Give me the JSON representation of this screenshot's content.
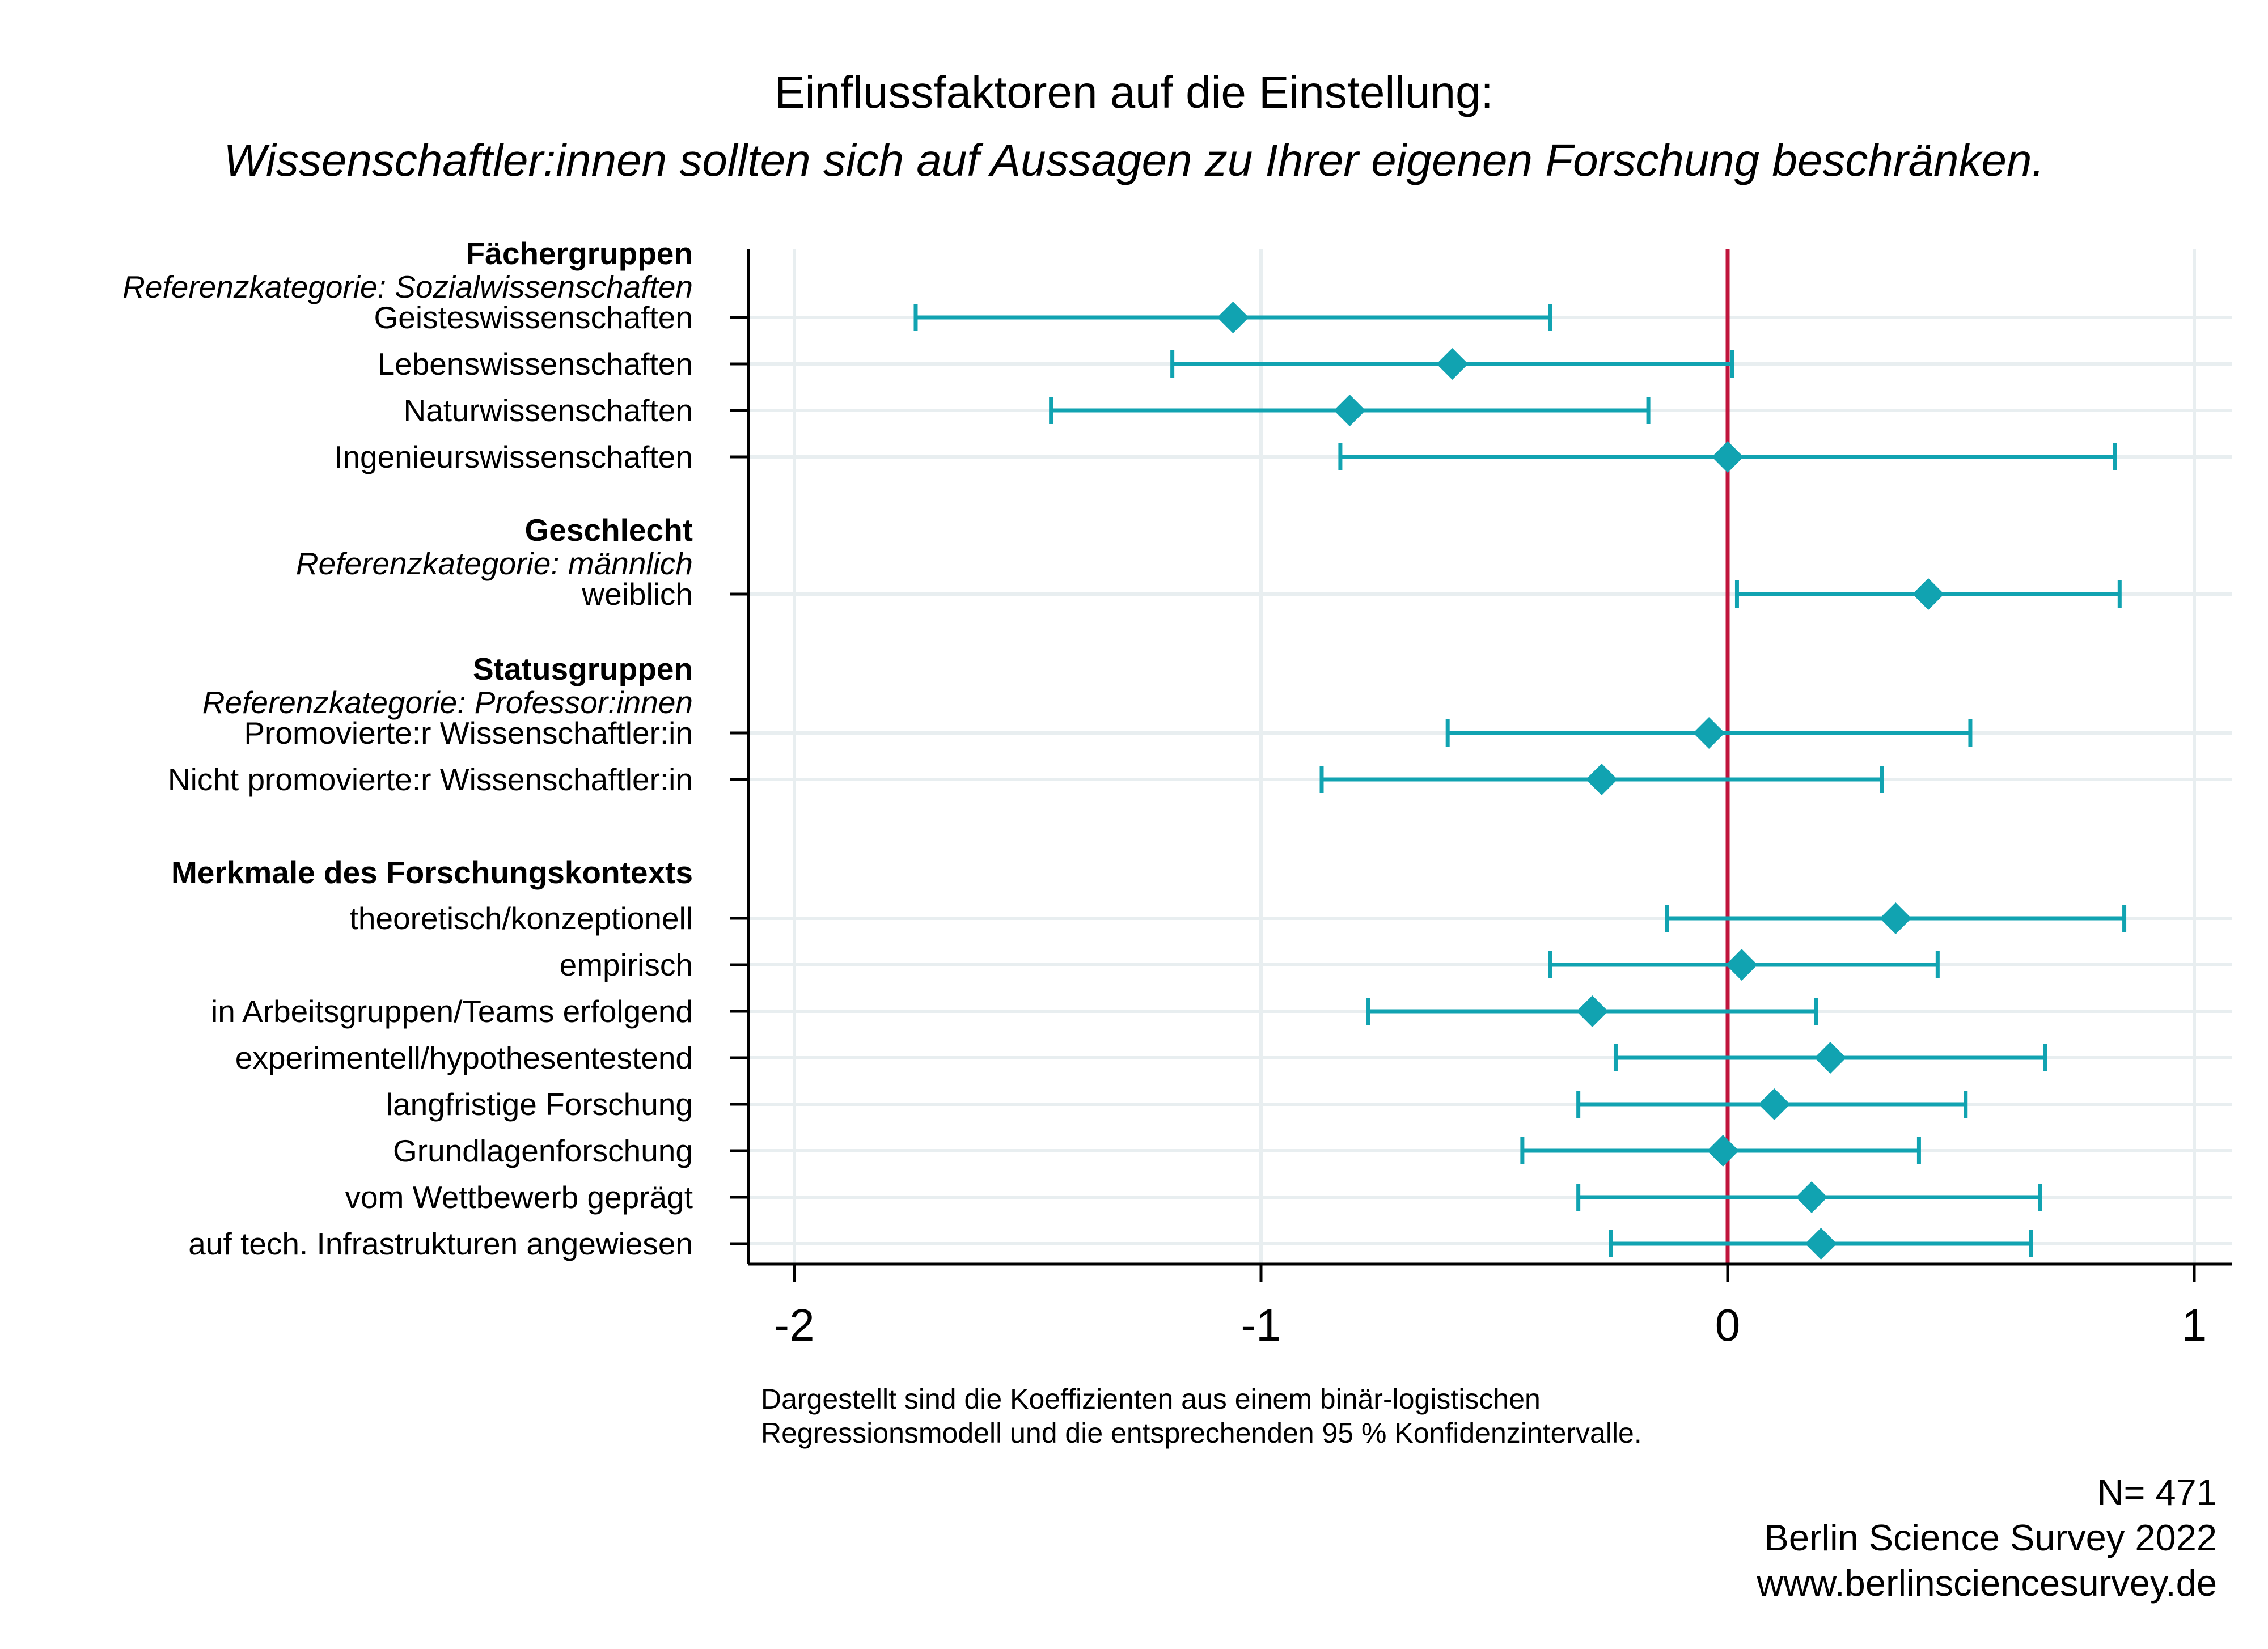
{
  "colors": {
    "marker": "#11a3b1",
    "zero_line": "#c0143c",
    "grid": "#e8eef0",
    "axis": "#000000",
    "text": "#000000",
    "background": "#ffffff"
  },
  "chart_data": {
    "type": "scatter",
    "subtype": "coefficient-plot",
    "title": "Einflussfaktoren auf die Einstellung:",
    "subtitle": "Wissenschaftler:innen sollten sich auf Aussagen zu Ihrer eigenen Forschung beschränken.",
    "xlim": [
      -2.1,
      1.08
    ],
    "xticks": [
      "-2",
      "-1",
      "0",
      "1"
    ],
    "xtick_values": [
      -2,
      -1,
      0,
      1
    ],
    "reference_line": 0,
    "grid": true,
    "marker": "diamond",
    "groups": [
      {
        "heading": "Fächergruppen",
        "reference": "Referenzkategorie: Sozialwissenschaften",
        "rows": [
          {
            "label": "Geisteswissenschaften",
            "estimate": -1.06,
            "ci_low": -1.74,
            "ci_high": -0.38
          },
          {
            "label": "Lebenswissenschaften",
            "estimate": -0.59,
            "ci_low": -1.19,
            "ci_high": 0.01
          },
          {
            "label": "Naturwissenschaften",
            "estimate": -0.81,
            "ci_low": -1.45,
            "ci_high": -0.17
          },
          {
            "label": "Ingenieurswissenschaften",
            "estimate": 0.0,
            "ci_low": -0.83,
            "ci_high": 0.83
          }
        ]
      },
      {
        "heading": "Geschlecht",
        "reference": "Referenzkategorie: männlich",
        "rows": [
          {
            "label": "weiblich",
            "estimate": 0.43,
            "ci_low": 0.02,
            "ci_high": 0.84
          }
        ]
      },
      {
        "heading": "Statusgruppen",
        "reference": "Referenzkategorie: Professor:innen",
        "rows": [
          {
            "label": "Promovierte:r Wissenschaftler:in",
            "estimate": -0.04,
            "ci_low": -0.6,
            "ci_high": 0.52
          },
          {
            "label": "Nicht promovierte:r Wissenschaftler:in",
            "estimate": -0.27,
            "ci_low": -0.87,
            "ci_high": 0.33
          }
        ]
      },
      {
        "heading": "Merkmale des Forschungskontexts",
        "reference": "",
        "rows": [
          {
            "label": "theoretisch/konzeptionell",
            "estimate": 0.36,
            "ci_low": -0.13,
            "ci_high": 0.85
          },
          {
            "label": "empirisch",
            "estimate": 0.03,
            "ci_low": -0.38,
            "ci_high": 0.45
          },
          {
            "label": "in Arbeitsgruppen/Teams erfolgend",
            "estimate": -0.29,
            "ci_low": -0.77,
            "ci_high": 0.19
          },
          {
            "label": "experimentell/hypothesentestend",
            "estimate": 0.22,
            "ci_low": -0.24,
            "ci_high": 0.68
          },
          {
            "label": "langfristige Forschung",
            "estimate": 0.1,
            "ci_low": -0.32,
            "ci_high": 0.51
          },
          {
            "label": "Grundlagenforschung",
            "estimate": -0.01,
            "ci_low": -0.44,
            "ci_high": 0.41
          },
          {
            "label": "vom Wettbewerb geprägt",
            "estimate": 0.18,
            "ci_low": -0.32,
            "ci_high": 0.67
          },
          {
            "label": "auf tech. Infrastrukturen angewiesen",
            "estimate": 0.2,
            "ci_low": -0.25,
            "ci_high": 0.65
          }
        ]
      }
    ],
    "note_lines": [
      "Dargestellt sind die Koeffizienten aus einem binär-logistischen",
      "Regressionsmodell und die entsprechenden 95 % Konfidenzintervalle."
    ],
    "credits": [
      "N= 471",
      "Berlin Science Survey 2022",
      "www.berlinsciencesurvey.de"
    ]
  }
}
